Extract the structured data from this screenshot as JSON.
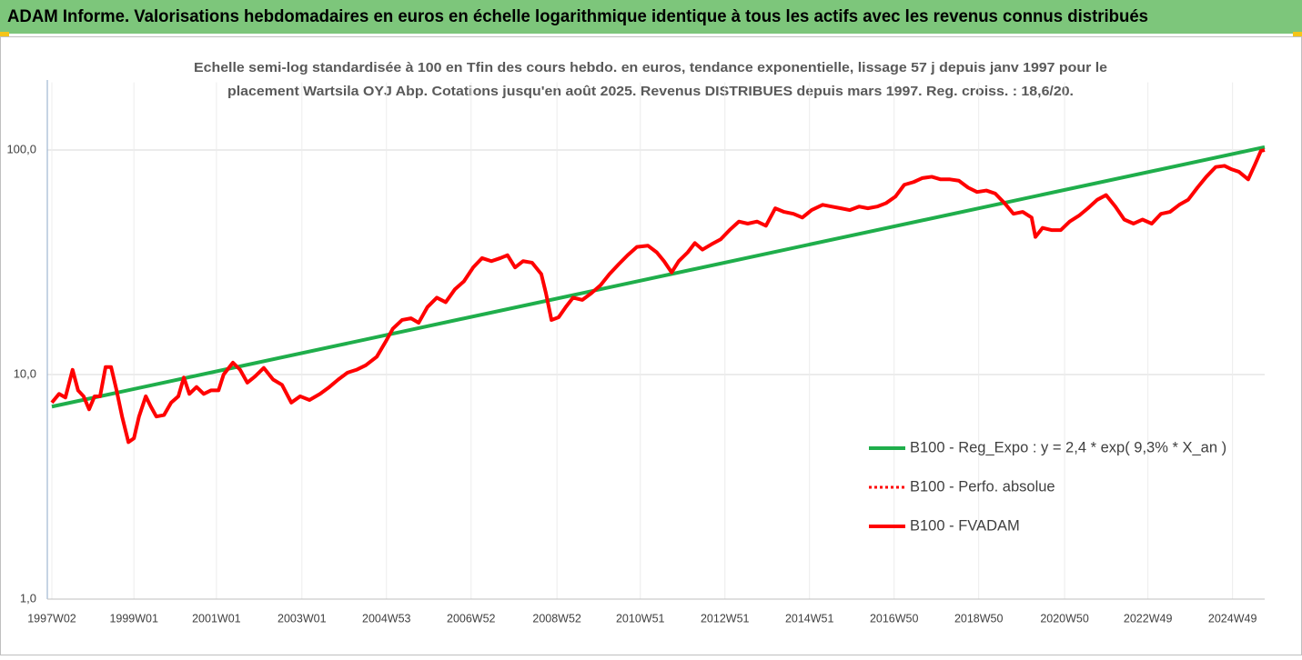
{
  "chart_data": {
    "type": "line",
    "title": "ADAM Informe. Valorisations hebdomadaires en euros en échelle logarithmique identique à tous les actifs avec les revenus connus distribués",
    "subtitle": [
      "Echelle semi-log standardisée à 100 en Tfin des cours hebdo. en euros, tendance exponentielle, lissage 57 j depuis janv 1997 pour le",
      "placement Wartsila OYJ Abp. Cotations jusqu'en août 2025. Revenus DISTRIBUES depuis mars 1997. Reg. croiss. : 18,6/20."
    ],
    "log_scale": true,
    "grid": true,
    "legend": "right",
    "xlim": [
      1997.0,
      2025.67
    ],
    "xticks": [
      {
        "value": 1997.0,
        "label": "1997W02"
      },
      {
        "value": 1998.94,
        "label": "1999W01"
      },
      {
        "value": 2000.89,
        "label": "2001W01"
      },
      {
        "value": 2002.91,
        "label": "2003W01"
      },
      {
        "value": 2004.91,
        "label": "2004W53"
      },
      {
        "value": 2006.91,
        "label": "2006W52"
      },
      {
        "value": 2008.94,
        "label": "2008W52"
      },
      {
        "value": 2010.91,
        "label": "2010W51"
      },
      {
        "value": 2012.91,
        "label": "2012W51"
      },
      {
        "value": 2014.91,
        "label": "2014W51"
      },
      {
        "value": 2016.91,
        "label": "2016W50"
      },
      {
        "value": 2018.91,
        "label": "2018W50"
      },
      {
        "value": 2020.94,
        "label": "2020W50"
      },
      {
        "value": 2022.91,
        "label": "2022W49"
      },
      {
        "value": 2024.91,
        "label": "2024W49"
      }
    ],
    "ylim": [
      1,
      200
    ],
    "yticks": [
      {
        "value": 1,
        "label": "1,0"
      },
      {
        "value": 10,
        "label": "10,0"
      },
      {
        "value": 100,
        "label": "100,0"
      }
    ],
    "series": [
      {
        "name": "B100 - Reg_Expo : y = 2,4 * exp( 9,3% *  X_an )",
        "color": "#1fae4b",
        "dash": "solid",
        "x": [
          1997.0,
          2025.67
        ],
        "values": [
          7.2,
          103
        ]
      },
      {
        "name": "B100 - Perfo. absolue",
        "color": "#ff0000",
        "dash": "dotted",
        "x": [],
        "values": []
      },
      {
        "name": "B100 - FVADAM",
        "color": "#ff0000",
        "dash": "solid",
        "x": [
          1997.0,
          1997.17,
          1997.32,
          1997.49,
          1997.62,
          1997.75,
          1997.88,
          1998.01,
          1998.14,
          1998.27,
          1998.4,
          1998.53,
          1998.66,
          1998.81,
          1998.94,
          1999.06,
          1999.22,
          1999.34,
          1999.47,
          1999.65,
          1999.82,
          1999.99,
          2000.12,
          2000.25,
          2000.42,
          2000.59,
          2000.76,
          2000.94,
          2001.06,
          2001.28,
          2001.45,
          2001.62,
          2001.8,
          2002.01,
          2002.23,
          2002.44,
          2002.66,
          2002.87,
          2003.09,
          2003.34,
          2003.56,
          2003.77,
          2003.99,
          2004.2,
          2004.42,
          2004.68,
          2004.89,
          2005.06,
          2005.28,
          2005.49,
          2005.67,
          2005.88,
          2006.1,
          2006.31,
          2006.53,
          2006.74,
          2006.96,
          2007.17,
          2007.39,
          2007.6,
          2007.77,
          2007.95,
          2008.14,
          2008.35,
          2008.57,
          2008.68,
          2008.81,
          2008.98,
          2009.15,
          2009.32,
          2009.54,
          2009.75,
          2009.97,
          2010.18,
          2010.4,
          2010.61,
          2010.83,
          2011.09,
          2011.3,
          2011.47,
          2011.65,
          2011.82,
          2012.03,
          2012.2,
          2012.38,
          2012.59,
          2012.81,
          2013.02,
          2013.24,
          2013.45,
          2013.67,
          2013.88,
          2014.1,
          2014.31,
          2014.53,
          2014.74,
          2014.96,
          2015.22,
          2015.43,
          2015.65,
          2015.86,
          2016.08,
          2016.29,
          2016.51,
          2016.72,
          2016.94,
          2017.15,
          2017.37,
          2017.58,
          2017.8,
          2018.01,
          2018.23,
          2018.44,
          2018.66,
          2018.87,
          2019.09,
          2019.3,
          2019.52,
          2019.73,
          2019.95,
          2020.16,
          2020.25,
          2020.42,
          2020.63,
          2020.85,
          2021.06,
          2021.28,
          2021.49,
          2021.71,
          2021.92,
          2022.14,
          2022.35,
          2022.57,
          2022.78,
          2023.0,
          2023.22,
          2023.43,
          2023.65,
          2023.86,
          2024.08,
          2024.29,
          2024.51,
          2024.72,
          2024.89,
          2025.06,
          2025.28,
          2025.45,
          2025.58,
          2025.67
        ],
        "values": [
          7.5,
          8.2,
          7.9,
          10.5,
          8.5,
          8.0,
          7.0,
          8.0,
          8.0,
          10.8,
          10.8,
          8.5,
          6.5,
          5.0,
          5.2,
          6.5,
          8.0,
          7.2,
          6.5,
          6.6,
          7.5,
          8.0,
          9.7,
          8.2,
          8.8,
          8.2,
          8.5,
          8.5,
          10.0,
          11.3,
          10.5,
          9.2,
          9.8,
          10.7,
          9.5,
          9.0,
          7.5,
          8.0,
          7.7,
          8.2,
          8.8,
          9.5,
          10.2,
          10.5,
          11.0,
          12.0,
          14.0,
          16.0,
          17.5,
          17.8,
          17.0,
          20.0,
          22.0,
          21.0,
          24.0,
          26.0,
          30.0,
          33.0,
          32.0,
          33.0,
          34.0,
          30.0,
          32.0,
          31.5,
          28.0,
          23.0,
          17.5,
          18.0,
          20.0,
          22.0,
          21.5,
          23.0,
          25.0,
          28.0,
          31.0,
          34.0,
          37.0,
          37.5,
          35.0,
          32.0,
          28.5,
          32.0,
          35.0,
          38.5,
          36.0,
          38.0,
          40.0,
          44.0,
          48.0,
          47.0,
          48.0,
          46.0,
          55.0,
          53.0,
          52.0,
          50.0,
          54.0,
          57.0,
          56.0,
          55.0,
          54.0,
          56.0,
          55.0,
          56.0,
          58.0,
          62.0,
          70.0,
          72.0,
          75.0,
          76.0,
          74.0,
          74.0,
          73.0,
          68.0,
          65.0,
          66.0,
          64.0,
          58.0,
          52.0,
          53.0,
          50.0,
          41.0,
          45.0,
          44.0,
          44.0,
          48.0,
          51.0,
          55.0,
          60.0,
          63.0,
          56.0,
          49.0,
          47.0,
          49.0,
          47.0,
          52.0,
          53.0,
          57.0,
          60.0,
          68.0,
          76.0,
          84.0,
          85.0,
          82.0,
          80.0,
          74.0,
          87.0,
          99.0,
          100.0
        ]
      }
    ]
  }
}
